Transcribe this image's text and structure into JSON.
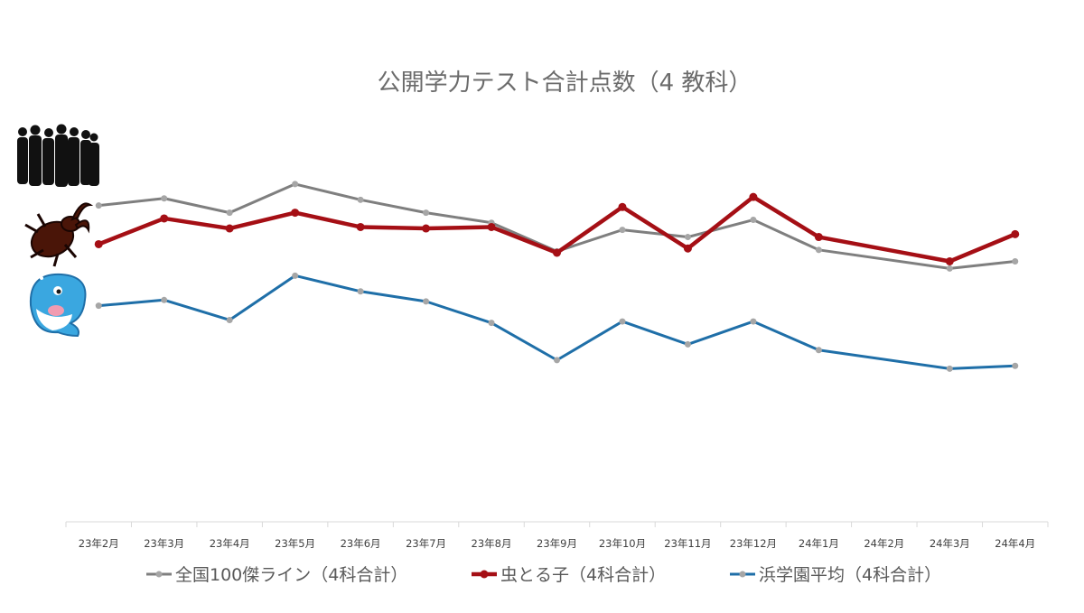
{
  "chart_data": {
    "type": "line",
    "title": "公開学力テスト合計点数（4 教科）",
    "xlabel": "",
    "ylabel": "",
    "categories": [
      "23年2月",
      "23年3月",
      "23年4月",
      "23年5月",
      "23年6月",
      "23年7月",
      "23年8月",
      "23年9月",
      "23年10月",
      "23年11月",
      "23年12月",
      "24年1月",
      "24年2月",
      "24年3月",
      "24年4月"
    ],
    "y_axis_visible": false,
    "gridlines": false,
    "legend_position": "bottom",
    "series": [
      {
        "name": "全国100傑ライン（4科合計）",
        "color": "#7f7f7f",
        "marker_color": "#a6a6a6",
        "values": [
          321,
          326,
          316,
          336,
          325,
          316,
          309,
          289,
          304,
          299,
          311,
          290,
          null,
          277,
          282
        ]
      },
      {
        "name": "虫とる子（4科合計）",
        "color": "#a50f15",
        "marker_color": "#a50f15",
        "values": [
          294,
          312,
          305,
          316,
          306,
          305,
          306,
          288,
          320,
          291,
          327,
          299,
          null,
          282,
          301
        ]
      },
      {
        "name": "浜学園平均（4科合計）",
        "color": "#1f6fa8",
        "marker_color": "#a6a6a6",
        "values": [
          251,
          255,
          241,
          272,
          261,
          254,
          239,
          213,
          240,
          224,
          240,
          220,
          null,
          207,
          209
        ]
      }
    ],
    "ylim": [
      100,
      370
    ]
  },
  "icons": [
    {
      "name": "crowd-icon"
    },
    {
      "name": "stag-beetle-icon"
    },
    {
      "name": "whale-icon"
    }
  ]
}
